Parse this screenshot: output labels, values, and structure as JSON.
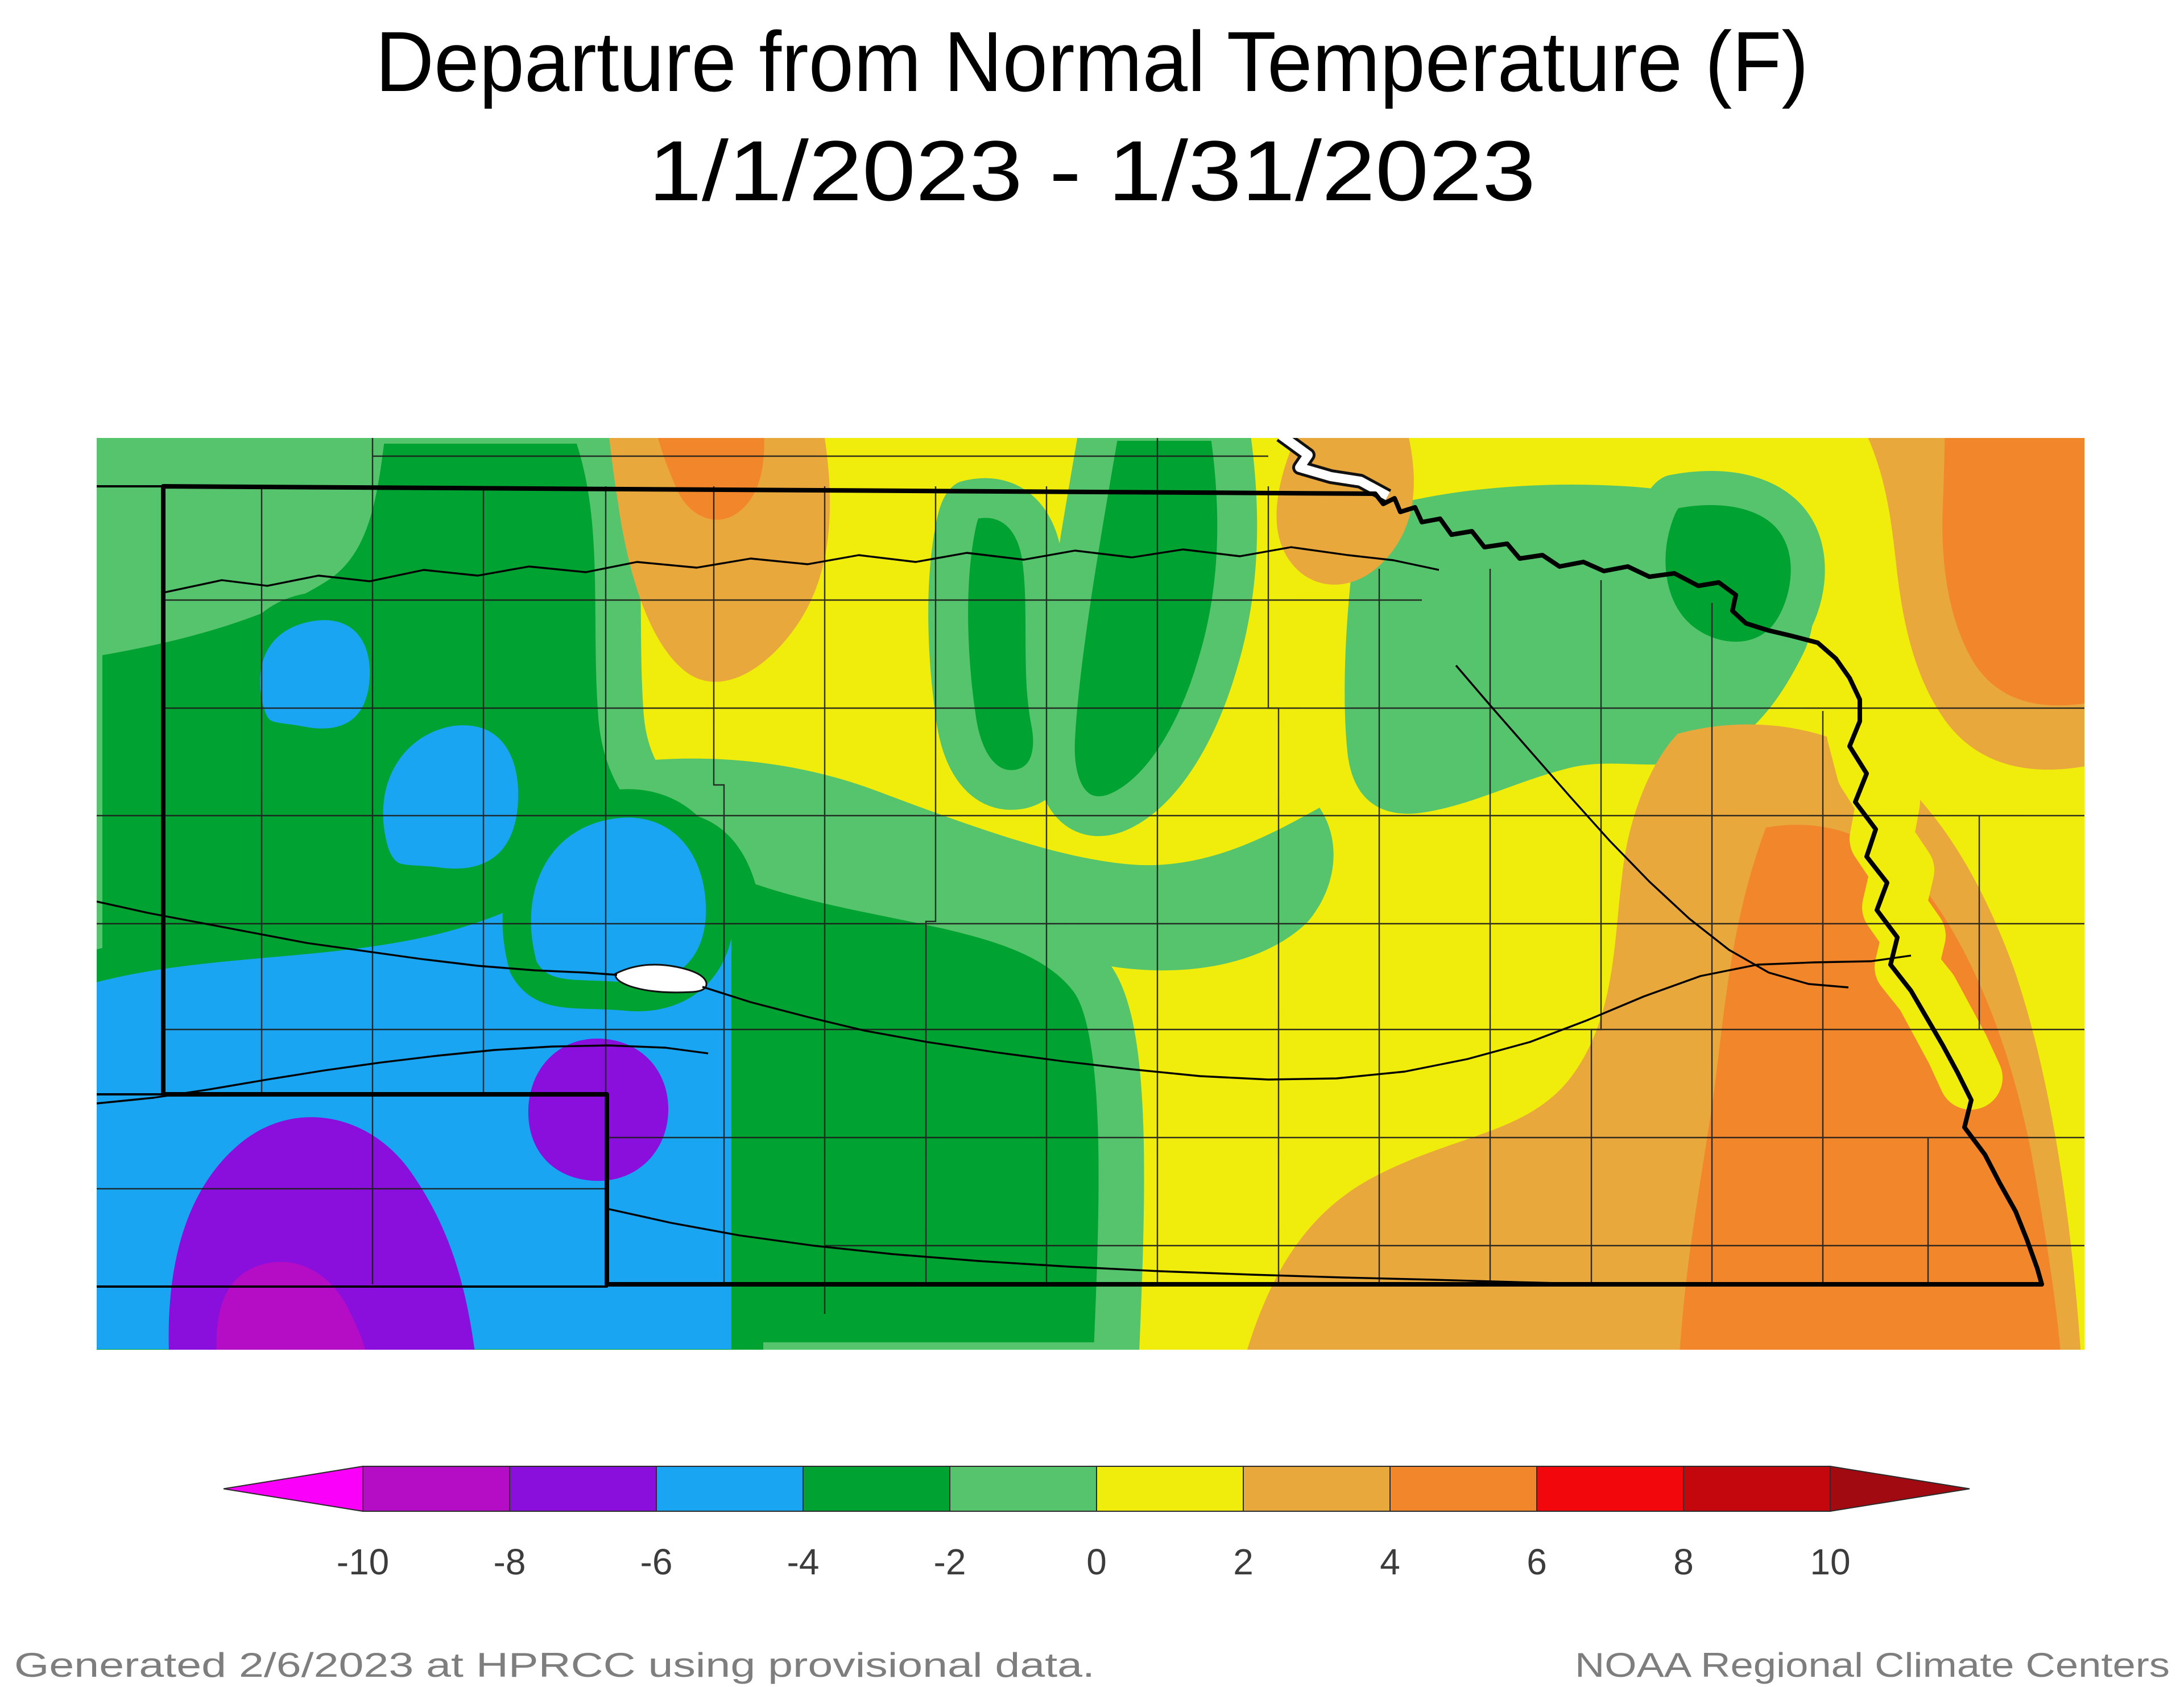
{
  "title": {
    "line1": "Departure from Normal Temperature (F)",
    "line2": "1/1/2023 - 1/31/2023"
  },
  "footer": {
    "generated": "Generated 2/6/2023 at HPRCC using provisional data.",
    "source": "NOAA Regional Climate Centers"
  },
  "colorbar": {
    "tick_labels": [
      "-10",
      "-8",
      "-6",
      "-4",
      "-2",
      "0",
      "2",
      "4",
      "6",
      "8",
      "10"
    ],
    "segment_colors": [
      "#B50CC6",
      "#8A0EDC",
      "#19A5F2",
      "#00A331",
      "#55C46C",
      "#F0EC0B",
      "#E9A83B",
      "#F1862B",
      "#F2080C",
      "#C4070C"
    ],
    "left_arrow_color": "#FA00FA",
    "right_arrow_color": "#A00A10",
    "outline_color": "#2b2b2b",
    "label_color": "#3c3c3c"
  },
  "palette": {
    "yellow": "#F0EC0B",
    "light_green": "#55C46C",
    "green": "#00A331",
    "blue": "#19A5F2",
    "purple": "#8A0EDC",
    "purple_dark": "#B50CC6",
    "amber": "#E9A83B",
    "orange": "#F1862B",
    "white": "#FFFFFF",
    "county_line": "#1d1d1d",
    "river_black": "#000000",
    "border_black": "#000000"
  },
  "map": {
    "region": "Nebraska",
    "quantity": "Departure from Normal Temperature (F)",
    "period_start": "1/1/2023",
    "period_end": "1/31/2023",
    "legend_min": -10,
    "legend_max": 10,
    "legend_step": 2,
    "features": [
      "state-border",
      "county-lines",
      "missouri-river",
      "niobrara-river",
      "platte-river",
      "north-platte-river",
      "south-platte-river",
      "republican-river",
      "elkhorn-river",
      "lake-mcconaughy"
    ]
  }
}
